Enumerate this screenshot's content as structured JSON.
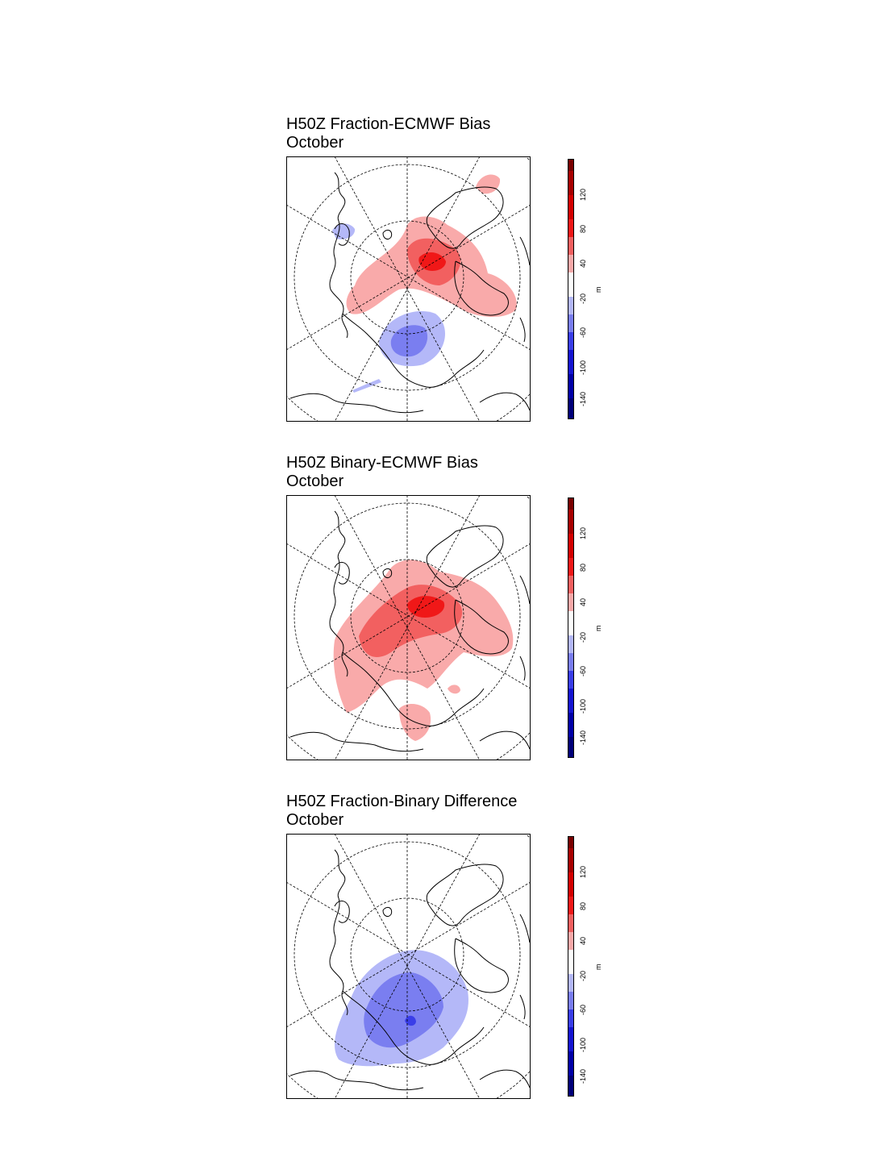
{
  "panels": [
    {
      "title_line1": "H50Z Fraction-ECMWF Bias",
      "title_line2": "October",
      "colorbar": {
        "unit": "m",
        "labels": [
          "120",
          "80",
          "40",
          "-20",
          "-60",
          "-100",
          "-140"
        ]
      }
    },
    {
      "title_line1": "H50Z Binary-ECMWF Bias",
      "title_line2": "October",
      "colorbar": {
        "unit": "m",
        "labels": [
          "120",
          "80",
          "40",
          "-20",
          "-60",
          "-100",
          "-140"
        ]
      }
    },
    {
      "title_line1": "H50Z Fraction-Binary Difference",
      "title_line2": "October",
      "colorbar": {
        "unit": "m",
        "labels": [
          "120",
          "80",
          "40",
          "-20",
          "-60",
          "-100",
          "-140"
        ]
      }
    }
  ],
  "colors": {
    "scale_top_to_bottom": [
      "#7a0000",
      "#a80000",
      "#d40000",
      "#f01818",
      "#f26060",
      "#f9aaaa",
      "#ffffff",
      "#b4b8f8",
      "#7a7ef0",
      "#3a3ee8",
      "#1414d2",
      "#0000a8",
      "#00007a"
    ]
  }
}
